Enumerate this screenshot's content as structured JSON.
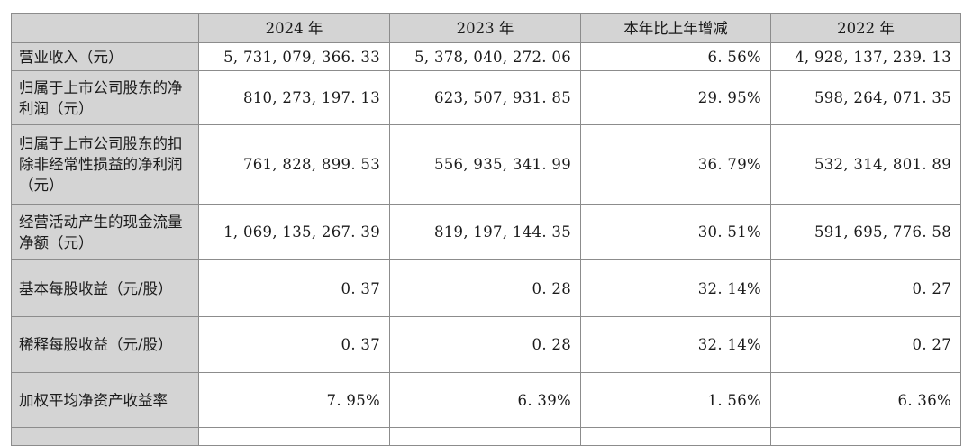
{
  "table": {
    "headers": [
      "",
      "2024 年",
      "2023 年",
      "本年比上年增减",
      "2022 年"
    ],
    "rows": [
      {
        "label": "营业收入（元）",
        "v2024": "5, 731, 079, 366. 33",
        "v2023": "5, 378, 040, 272. 06",
        "change": "6. 56%",
        "v2022": "4, 928, 137, 239. 13"
      },
      {
        "label": "归属于上市公司股东的净利润（元）",
        "v2024": "810, 273, 197. 13",
        "v2023": "623, 507, 931. 85",
        "change": "29. 95%",
        "v2022": "598, 264, 071. 35"
      },
      {
        "label": "归属于上市公司股东的扣除非经常性损益的净利润（元）",
        "v2024": "761, 828, 899. 53",
        "v2023": "556, 935, 341. 99",
        "change": "36. 79%",
        "v2022": "532, 314, 801. 89"
      },
      {
        "label": "经营活动产生的现金流量净额（元）",
        "v2024": "1, 069, 135, 267. 39",
        "v2023": "819, 197, 144. 35",
        "change": "30. 51%",
        "v2022": "591, 695, 776. 58"
      },
      {
        "label": "基本每股收益（元/股）",
        "v2024": "0. 37",
        "v2023": "0. 28",
        "change": "32. 14%",
        "v2022": "0. 27"
      },
      {
        "label": "稀释每股收益（元/股）",
        "v2024": "0. 37",
        "v2023": "0. 28",
        "change": "32. 14%",
        "v2022": "0. 27"
      },
      {
        "label": "加权平均净资产收益率",
        "v2024": "7. 95%",
        "v2023": "6. 39%",
        "change": "1. 56%",
        "v2022": "6. 36%"
      }
    ]
  }
}
